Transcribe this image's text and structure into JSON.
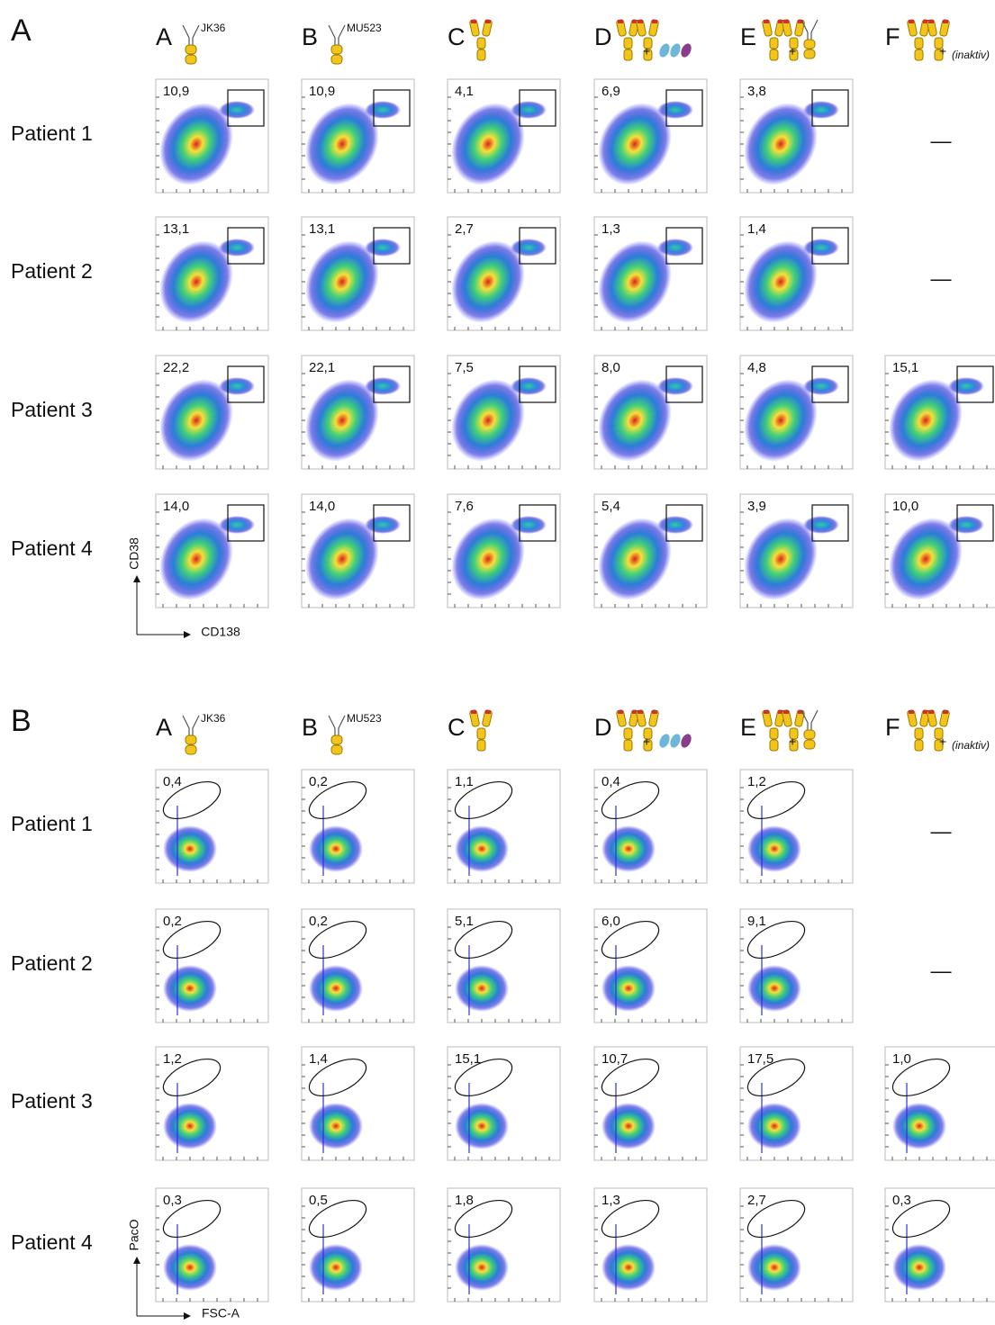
{
  "panels": [
    {
      "label": "A",
      "y_axis": "CD38",
      "x_axis": "CD138",
      "columns": [
        {
          "letter": "A",
          "name": "JK36"
        },
        {
          "letter": "B",
          "name": "MU523"
        },
        {
          "letter": "C"
        },
        {
          "letter": "D",
          "plus": "+"
        },
        {
          "letter": "E",
          "plus": "+"
        },
        {
          "letter": "F",
          "plus": "+",
          "name": "(inaktiv)"
        }
      ],
      "rows": [
        {
          "patient": "Patient 1",
          "values": [
            "10,9",
            "10,9",
            "4,1",
            "6,9",
            "3,8",
            "—"
          ]
        },
        {
          "patient": "Patient 2",
          "values": [
            "13,1",
            "13,1",
            "2,7",
            "1,3",
            "1,4",
            "—"
          ]
        },
        {
          "patient": "Patient 3",
          "values": [
            "22,2",
            "22,1",
            "7,5",
            "8,0",
            "4,8",
            "15,1"
          ]
        },
        {
          "patient": "Patient 4",
          "values": [
            "14,0",
            "14,0",
            "7,6",
            "5,4",
            "3,9",
            "10,0"
          ]
        }
      ]
    },
    {
      "label": "B",
      "y_axis": "PacO",
      "x_axis": "FSC-A",
      "columns": [
        {
          "letter": "A",
          "name": "JK36"
        },
        {
          "letter": "B",
          "name": "MU523"
        },
        {
          "letter": "C"
        },
        {
          "letter": "D",
          "plus": "+"
        },
        {
          "letter": "E",
          "plus": "+"
        },
        {
          "letter": "F",
          "plus": "+",
          "name": "(inaktiv)"
        }
      ],
      "rows": [
        {
          "patient": "Patient 1",
          "values": [
            "0,4",
            "0,2",
            "1,1",
            "0,4",
            "1,2",
            "—"
          ]
        },
        {
          "patient": "Patient 2",
          "values": [
            "0,2",
            "0,2",
            "5,1",
            "6,0",
            "9,1",
            "—"
          ]
        },
        {
          "patient": "Patient 3",
          "values": [
            "1,2",
            "1,4",
            "15,1",
            "10,7",
            "17,5",
            "1,0"
          ]
        },
        {
          "patient": "Patient 4",
          "values": [
            "0,3",
            "0,5",
            "1,8",
            "1,3",
            "2,7",
            "0,3"
          ]
        }
      ]
    }
  ]
}
